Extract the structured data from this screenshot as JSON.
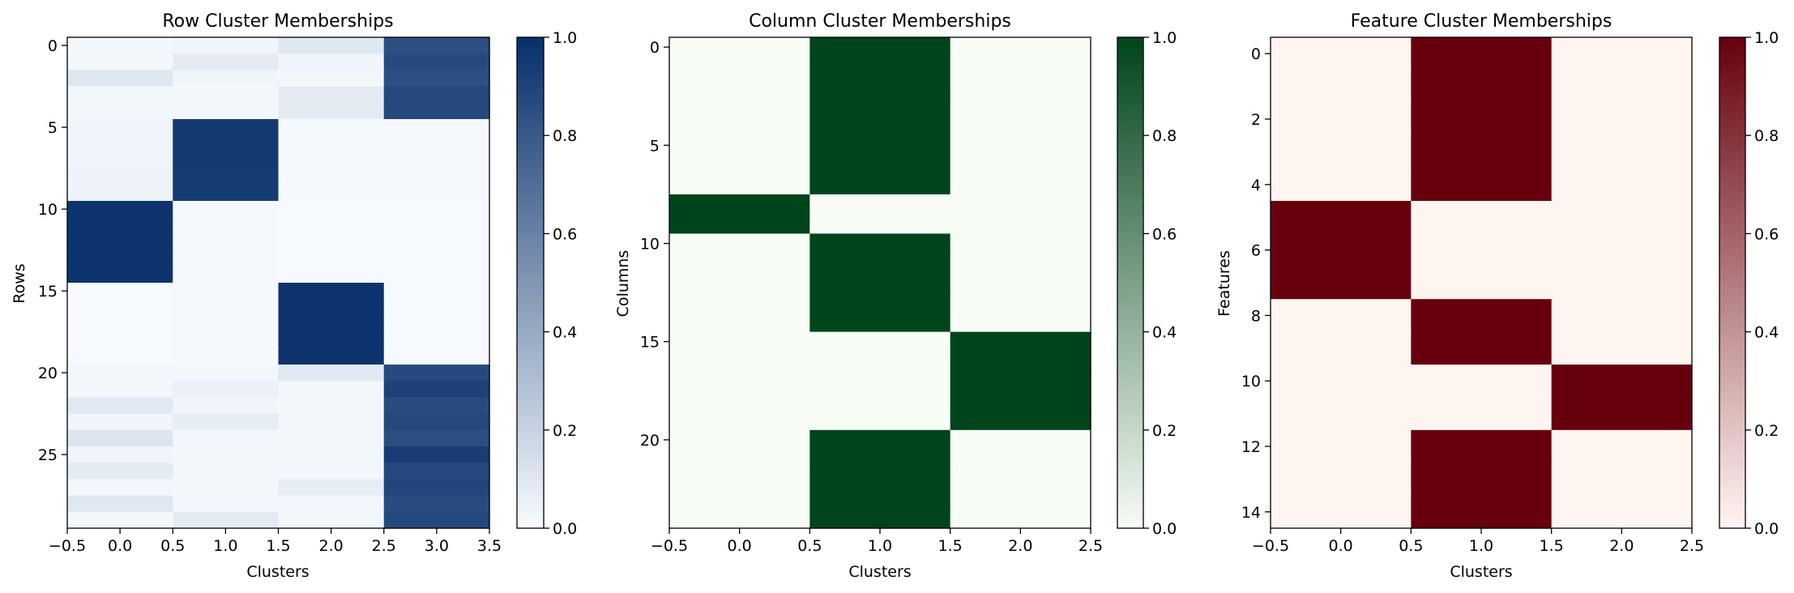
{
  "chart_data": [
    {
      "type": "heatmap",
      "title": "Row Cluster Memberships",
      "xlabel": "Clusters",
      "ylabel": "Rows",
      "colormap": "Blues",
      "color_low": "#f7fbff",
      "color_high": "#08306b",
      "clim": [
        0.0,
        1.0
      ],
      "xlim": [
        -0.5,
        3.5
      ],
      "ylim": [
        29.5,
        -0.5
      ],
      "xticks": [
        -0.5,
        0.0,
        0.5,
        1.0,
        1.5,
        2.0,
        2.5,
        3.0,
        3.5
      ],
      "xtick_labels": [
        "−0.5",
        "0.0",
        "0.5",
        "1.0",
        "1.5",
        "2.0",
        "2.5",
        "3.0",
        "3.5"
      ],
      "yticks": [
        0,
        5,
        10,
        15,
        20,
        25
      ],
      "ytick_labels": [
        "0",
        "5",
        "10",
        "15",
        "20",
        "25"
      ],
      "cbar_ticks": [
        0.0,
        0.2,
        0.4,
        0.6,
        0.8,
        1.0
      ],
      "cbar_tick_labels": [
        "0.0",
        "0.2",
        "0.4",
        "0.6",
        "0.8",
        "1.0"
      ],
      "matrix": [
        [
          0.02,
          0.03,
          0.1,
          0.85
        ],
        [
          0.02,
          0.08,
          0.03,
          0.87
        ],
        [
          0.1,
          0.03,
          0.02,
          0.85
        ],
        [
          0.02,
          0.02,
          0.08,
          0.88
        ],
        [
          0.02,
          0.02,
          0.08,
          0.88
        ],
        [
          0.03,
          0.95,
          0.01,
          0.01
        ],
        [
          0.03,
          0.95,
          0.01,
          0.01
        ],
        [
          0.03,
          0.95,
          0.01,
          0.01
        ],
        [
          0.04,
          0.94,
          0.01,
          0.01
        ],
        [
          0.04,
          0.94,
          0.01,
          0.01
        ],
        [
          0.98,
          0.01,
          0.005,
          0.005
        ],
        [
          0.98,
          0.01,
          0.005,
          0.005
        ],
        [
          0.98,
          0.01,
          0.005,
          0.005
        ],
        [
          0.98,
          0.01,
          0.005,
          0.005
        ],
        [
          0.98,
          0.01,
          0.005,
          0.005
        ],
        [
          0.005,
          0.01,
          0.98,
          0.005
        ],
        [
          0.005,
          0.01,
          0.98,
          0.005
        ],
        [
          0.005,
          0.01,
          0.98,
          0.005
        ],
        [
          0.005,
          0.01,
          0.98,
          0.005
        ],
        [
          0.005,
          0.01,
          0.98,
          0.005
        ],
        [
          0.02,
          0.02,
          0.09,
          0.87
        ],
        [
          0.02,
          0.05,
          0.02,
          0.91
        ],
        [
          0.09,
          0.03,
          0.02,
          0.86
        ],
        [
          0.03,
          0.07,
          0.02,
          0.88
        ],
        [
          0.11,
          0.02,
          0.02,
          0.85
        ],
        [
          0.03,
          0.02,
          0.02,
          0.93
        ],
        [
          0.08,
          0.02,
          0.02,
          0.88
        ],
        [
          0.02,
          0.02,
          0.07,
          0.89
        ],
        [
          0.1,
          0.02,
          0.02,
          0.86
        ],
        [
          0.02,
          0.08,
          0.02,
          0.88
        ]
      ]
    },
    {
      "type": "heatmap",
      "title": "Column Cluster Memberships",
      "xlabel": "Clusters",
      "ylabel": "Columns",
      "colormap": "Greens",
      "color_low": "#f7fcf5",
      "color_high": "#00441b",
      "clim": [
        0.0,
        1.0
      ],
      "xlim": [
        -0.5,
        2.5
      ],
      "ylim": [
        24.5,
        -0.5
      ],
      "xticks": [
        -0.5,
        0.0,
        0.5,
        1.0,
        1.5,
        2.0,
        2.5
      ],
      "xtick_labels": [
        "−0.5",
        "0.0",
        "0.5",
        "1.0",
        "1.5",
        "2.0",
        "2.5"
      ],
      "yticks": [
        0,
        5,
        10,
        15,
        20
      ],
      "ytick_labels": [
        "0",
        "5",
        "10",
        "15",
        "20"
      ],
      "cbar_ticks": [
        0.0,
        0.2,
        0.4,
        0.6,
        0.8,
        1.0
      ],
      "cbar_tick_labels": [
        "0.0",
        "0.2",
        "0.4",
        "0.6",
        "0.8",
        "1.0"
      ],
      "matrix": [
        [
          0,
          1,
          0
        ],
        [
          0,
          1,
          0
        ],
        [
          0,
          1,
          0
        ],
        [
          0,
          1,
          0
        ],
        [
          0,
          1,
          0
        ],
        [
          0,
          1,
          0
        ],
        [
          0,
          1,
          0
        ],
        [
          0,
          1,
          0
        ],
        [
          1,
          0,
          0
        ],
        [
          1,
          0,
          0
        ],
        [
          0,
          1,
          0
        ],
        [
          0,
          1,
          0
        ],
        [
          0,
          1,
          0
        ],
        [
          0,
          1,
          0
        ],
        [
          0,
          1,
          0
        ],
        [
          0,
          0,
          1
        ],
        [
          0,
          0,
          1
        ],
        [
          0,
          0,
          1
        ],
        [
          0,
          0,
          1
        ],
        [
          0,
          0,
          1
        ],
        [
          0,
          1,
          0
        ],
        [
          0,
          1,
          0
        ],
        [
          0,
          1,
          0
        ],
        [
          0,
          1,
          0
        ],
        [
          0,
          1,
          0
        ]
      ]
    },
    {
      "type": "heatmap",
      "title": "Feature Cluster Memberships",
      "xlabel": "Clusters",
      "ylabel": "Features",
      "colormap": "Reds",
      "color_low": "#fff5f0",
      "color_high": "#67000d",
      "clim": [
        0.0,
        1.0
      ],
      "xlim": [
        -0.5,
        2.5
      ],
      "ylim": [
        14.5,
        -0.5
      ],
      "xticks": [
        -0.5,
        0.0,
        0.5,
        1.0,
        1.5,
        2.0,
        2.5
      ],
      "xtick_labels": [
        "−0.5",
        "0.0",
        "0.5",
        "1.0",
        "1.5",
        "2.0",
        "2.5"
      ],
      "yticks": [
        0,
        2,
        4,
        6,
        8,
        10,
        12,
        14
      ],
      "ytick_labels": [
        "0",
        "2",
        "4",
        "6",
        "8",
        "10",
        "12",
        "14"
      ],
      "cbar_ticks": [
        0.0,
        0.2,
        0.4,
        0.6,
        0.8,
        1.0
      ],
      "cbar_tick_labels": [
        "0.0",
        "0.2",
        "0.4",
        "0.6",
        "0.8",
        "1.0"
      ],
      "matrix": [
        [
          0,
          1,
          0
        ],
        [
          0,
          1,
          0
        ],
        [
          0,
          1,
          0
        ],
        [
          0,
          1,
          0
        ],
        [
          0,
          1,
          0
        ],
        [
          1,
          0,
          0
        ],
        [
          1,
          0,
          0
        ],
        [
          1,
          0,
          0
        ],
        [
          0,
          1,
          0
        ],
        [
          0,
          1,
          0
        ],
        [
          0,
          0,
          1
        ],
        [
          0,
          0,
          1
        ],
        [
          0,
          1,
          0
        ],
        [
          0,
          1,
          0
        ],
        [
          0,
          1,
          0
        ]
      ]
    }
  ]
}
